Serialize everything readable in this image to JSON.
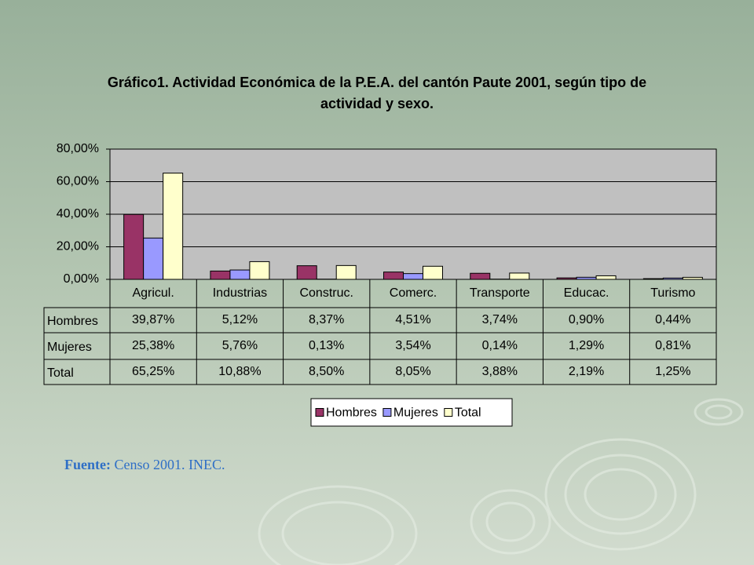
{
  "title": "Gráfico1. Actividad Económica de la P.E.A. del cantón Paute 2001, según tipo de actividad y sexo.",
  "chart_data": {
    "type": "bar",
    "categories": [
      "Agricul.",
      "Industrias",
      "Construc.",
      "Comerc.",
      "Transporte",
      "Educac.",
      "Turismo"
    ],
    "series": [
      {
        "name": "Hombres",
        "color": "#993366",
        "values": [
          39.87,
          5.12,
          8.37,
          4.51,
          3.74,
          0.9,
          0.44
        ],
        "value_labels": [
          "39,87%",
          "5,12%",
          "8,37%",
          "4,51%",
          "3,74%",
          "0,90%",
          "0,44%"
        ]
      },
      {
        "name": "Mujeres",
        "color": "#9999ff",
        "values": [
          25.38,
          5.76,
          0.13,
          3.54,
          0.14,
          1.29,
          0.81
        ],
        "value_labels": [
          "25,38%",
          "5,76%",
          "0,13%",
          "3,54%",
          "0,14%",
          "1,29%",
          "0,81%"
        ]
      },
      {
        "name": "Total",
        "color": "#ffffcc",
        "values": [
          65.25,
          10.88,
          8.5,
          8.05,
          3.88,
          2.19,
          1.25
        ],
        "value_labels": [
          "65,25%",
          "10,88%",
          "8,50%",
          "8,05%",
          "3,88%",
          "2,19%",
          "1,25%"
        ]
      }
    ],
    "ylim": [
      0,
      80
    ],
    "yticks": [
      {
        "value": 0,
        "label": "0,00%"
      },
      {
        "value": 20,
        "label": "20,00%"
      },
      {
        "value": 40,
        "label": "40,00%"
      },
      {
        "value": 60,
        "label": "60,00%"
      },
      {
        "value": 80,
        "label": "80,00%"
      }
    ],
    "grid": true,
    "plot_background": "#c0c0c0"
  },
  "source": {
    "label": "Fuente:",
    "text": "Censo 2001. INEC."
  }
}
